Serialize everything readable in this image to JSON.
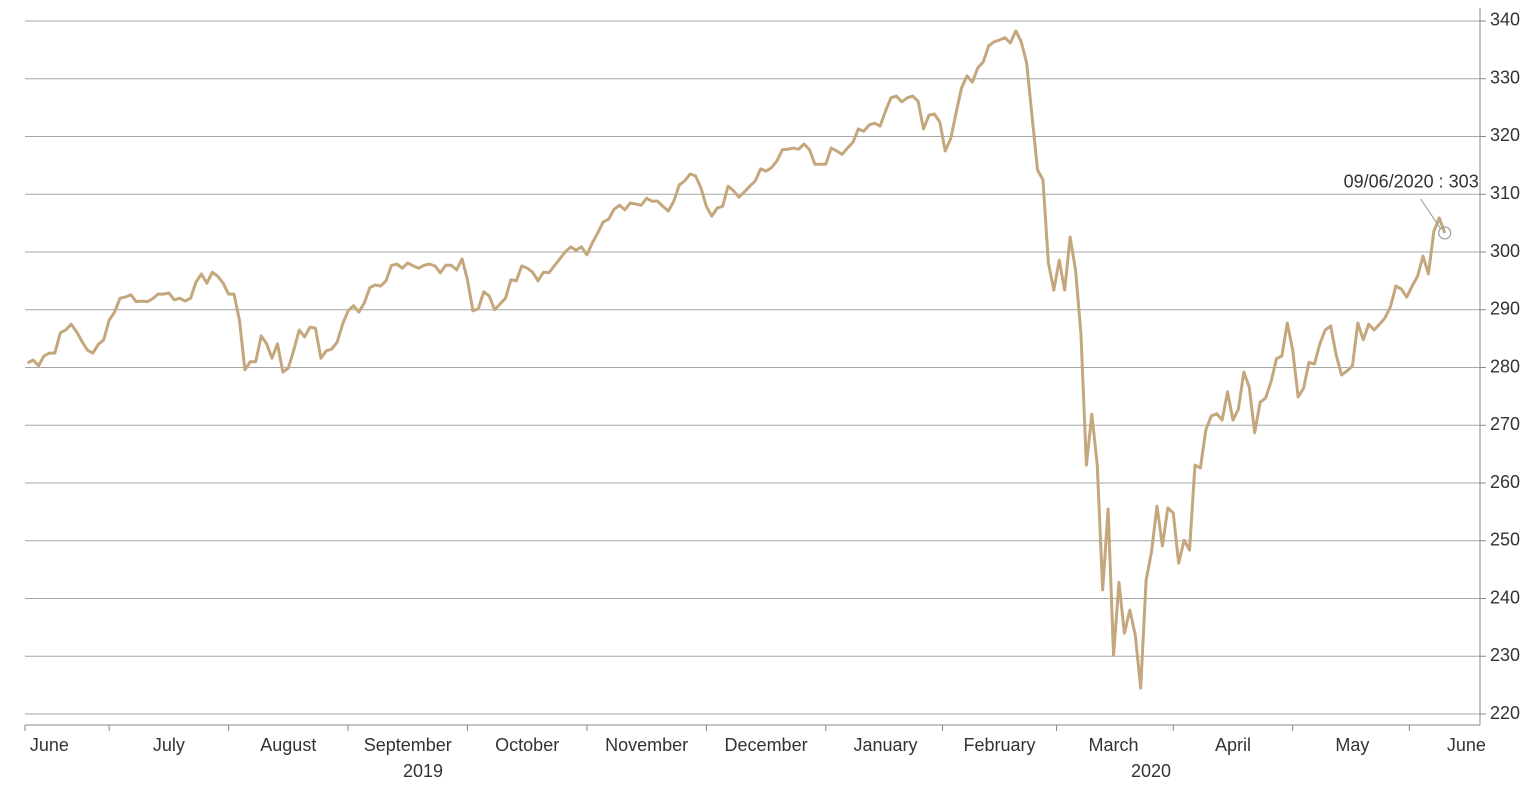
{
  "chart_data": {
    "type": "line",
    "categories": [
      null,
      null,
      null,
      null,
      "June",
      null,
      null,
      null,
      null,
      null,
      null,
      null,
      null,
      null,
      null,
      null,
      null,
      null,
      null,
      null,
      null,
      null,
      null,
      null,
      null,
      null,
      "July",
      null,
      null,
      null,
      null,
      null,
      null,
      null,
      null,
      null,
      null,
      null,
      null,
      null,
      null,
      null,
      null,
      null,
      null,
      null,
      null,
      null,
      "August",
      null,
      null,
      null,
      null,
      null,
      null,
      null,
      null,
      null,
      null,
      null,
      null,
      null,
      null,
      null,
      null,
      null,
      null,
      null,
      null,
      null,
      "September",
      null,
      null,
      null,
      null,
      null,
      null,
      null,
      null,
      null,
      null,
      null,
      null,
      null,
      null,
      null,
      null,
      null,
      null,
      null,
      null,
      null,
      "October",
      null,
      null,
      null,
      null,
      null,
      null,
      null,
      null,
      null,
      null,
      null,
      null,
      null,
      null,
      null,
      null,
      null,
      null,
      null,
      null,
      null,
      "November",
      null,
      null,
      null,
      null,
      null,
      null,
      null,
      null,
      null,
      null,
      null,
      null,
      null,
      null,
      null,
      null,
      null,
      null,
      null,
      null,
      null,
      "December",
      null,
      null,
      null,
      null,
      null,
      null,
      null,
      null,
      null,
      null,
      null,
      null,
      null,
      null,
      null,
      null,
      null,
      null,
      null,
      null,
      null,
      "January",
      null,
      null,
      null,
      null,
      null,
      null,
      null,
      null,
      null,
      null,
      null,
      null,
      null,
      null,
      null,
      null,
      null,
      null,
      null,
      null,
      "February",
      null,
      null,
      null,
      null,
      null,
      null,
      null,
      null,
      null,
      null,
      null,
      null,
      null,
      null,
      null,
      null,
      null,
      null,
      null,
      null,
      "March",
      null,
      null,
      null,
      null,
      null,
      null,
      null,
      null,
      null,
      null,
      null,
      null,
      null,
      null,
      null,
      null,
      null,
      null,
      null,
      null,
      null,
      "April",
      null,
      null,
      null,
      null,
      null,
      null,
      null,
      null,
      null,
      null,
      null,
      null,
      null,
      null,
      null,
      null,
      null,
      null,
      null,
      null,
      null,
      "May",
      null,
      null,
      null,
      null,
      null,
      null,
      null,
      null,
      null,
      null,
      null,
      null,
      null,
      null,
      null,
      null,
      null,
      null,
      null,
      null,
      "June",
      null,
      null
    ],
    "year_labels": [
      "2019",
      "2020"
    ],
    "values": [
      280.8,
      281.3,
      280.3,
      282,
      282.5,
      282.5,
      286,
      286.5,
      287.5,
      286.2,
      284.5,
      283,
      282.5,
      284,
      284.8,
      288.2,
      289.6,
      292,
      292.2,
      292.6,
      291.4,
      291.5,
      291.4,
      291.9,
      292.7,
      292.7,
      292.9,
      291.7,
      292,
      291.5,
      292,
      294.8,
      296.2,
      294.6,
      296.5,
      295.8,
      294.6,
      292.7,
      292.7,
      288.2,
      279.6,
      281,
      281,
      285.5,
      284.1,
      281.6,
      284.1,
      279.2,
      279.9,
      283,
      286.5,
      285.3,
      287,
      286.8,
      281.6,
      282.9,
      283.2,
      284.4,
      287.5,
      289.8,
      290.7,
      289.6,
      291.2,
      293.8,
      294.3,
      294.1,
      295,
      297.7,
      297.9,
      297.2,
      298.1,
      297.6,
      297.2,
      297.7,
      297.9,
      297.6,
      296.4,
      297.7,
      297.7,
      296.9,
      298.8,
      295.2,
      289.8,
      290.2,
      293.1,
      292.4,
      290,
      291,
      292,
      295.2,
      295,
      297.6,
      297.2,
      296.5,
      295,
      296.5,
      296.4,
      297.6,
      298.8,
      300,
      300.9,
      300.3,
      300.9,
      299.5,
      301.6,
      303.3,
      305.2,
      305.7,
      307.4,
      308.1,
      307.3,
      308.5,
      308.3,
      308.1,
      309.3,
      308.8,
      308.8,
      307.9,
      307.1,
      308.8,
      311.6,
      312.3,
      313.5,
      313.2,
      311.1,
      307.9,
      306.2,
      307.6,
      307.9,
      311.4,
      310.6,
      309.5,
      310.4,
      311.4,
      312.3,
      314.4,
      314,
      314.6,
      315.8,
      317.7,
      317.8,
      318,
      317.8,
      318.7,
      317.7,
      315.2,
      315.2,
      315.2,
      318,
      317.5,
      316.9,
      318,
      319,
      321.3,
      320.9,
      322,
      322.3,
      321.8,
      324.4,
      326.7,
      327,
      326,
      326.7,
      327,
      326.1,
      321.3,
      323.7,
      323.9,
      322.5,
      317.5,
      319.6,
      324.1,
      328.4,
      330.5,
      329.4,
      331.9,
      332.9,
      335.7,
      336.4,
      336.7,
      337.1,
      336.2,
      338.3,
      336.4,
      332.7,
      323.4,
      314.2,
      312.5,
      298.1,
      293.4,
      298.6,
      293.4,
      302.6,
      296.9,
      285.8,
      263.1,
      271.9,
      263.1,
      241.5,
      255.5,
      230.2,
      242.8,
      234,
      238,
      233.7,
      224.5,
      243.2,
      248.1,
      256,
      249.1,
      255.7,
      254.8,
      246.1,
      250.1,
      248.4,
      263.1,
      262.6,
      269.2,
      271.6,
      272,
      270.9,
      275.8,
      270.9,
      272.8,
      279.2,
      276.6,
      268.7,
      274,
      274.7,
      277.5,
      281.5,
      282,
      287.7,
      283,
      274.9,
      276.4,
      280.9,
      280.6,
      284.1,
      286.5,
      287.2,
      282.2,
      278.7,
      279.4,
      280.3,
      287.7,
      284.8,
      287.5,
      286.5,
      287.5,
      288.6,
      290.5,
      294.1,
      293.6,
      292.2,
      294.1,
      295.8,
      299.3,
      296.2,
      303.6,
      305.9,
      303.3,
      null,
      null,
      null,
      null,
      null,
      null
    ],
    "color": "#c4a77d",
    "annotation": "09/06/2020 : 303",
    "ylim": [
      218.1,
      342.25
    ],
    "yticks": [
      220,
      230,
      240,
      250,
      260,
      270,
      280,
      290,
      300,
      310,
      320,
      330,
      340
    ],
    "grid": true
  }
}
